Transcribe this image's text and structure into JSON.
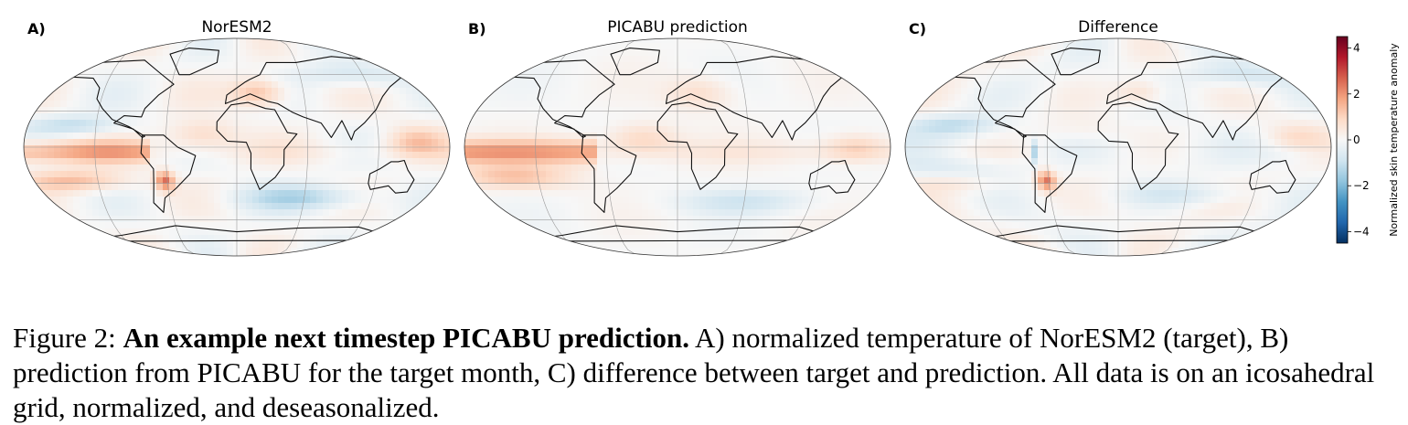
{
  "figure": {
    "panels": [
      {
        "letter": "A)",
        "title": "NorESM2",
        "kind": "target"
      },
      {
        "letter": "B)",
        "title": "PICABU prediction",
        "kind": "prediction"
      },
      {
        "letter": "C)",
        "title": "Difference",
        "kind": "difference"
      }
    ],
    "colorbar": {
      "label": "Normalized skin temperature anomaly",
      "ticks": [
        "4",
        "2",
        "0",
        "−2",
        "−4"
      ],
      "range": [
        -4.5,
        4.5
      ],
      "colormap": [
        "#67001f",
        "#b2182b",
        "#d6604d",
        "#f4a582",
        "#fddbc7",
        "#f7f7f7",
        "#d1e5f0",
        "#92c5de",
        "#4393c3",
        "#2166ac",
        "#053061"
      ]
    }
  },
  "caption": {
    "label": "Figure 2:",
    "bold": "An example next timestep PICABU prediction.",
    "text": "A) normalized temperature of NorESM2 (target), B) prediction from PICABU for the target month, C) difference between target and prediction. All data is on an icosahedral grid, normalized, and deseasonalized."
  }
}
